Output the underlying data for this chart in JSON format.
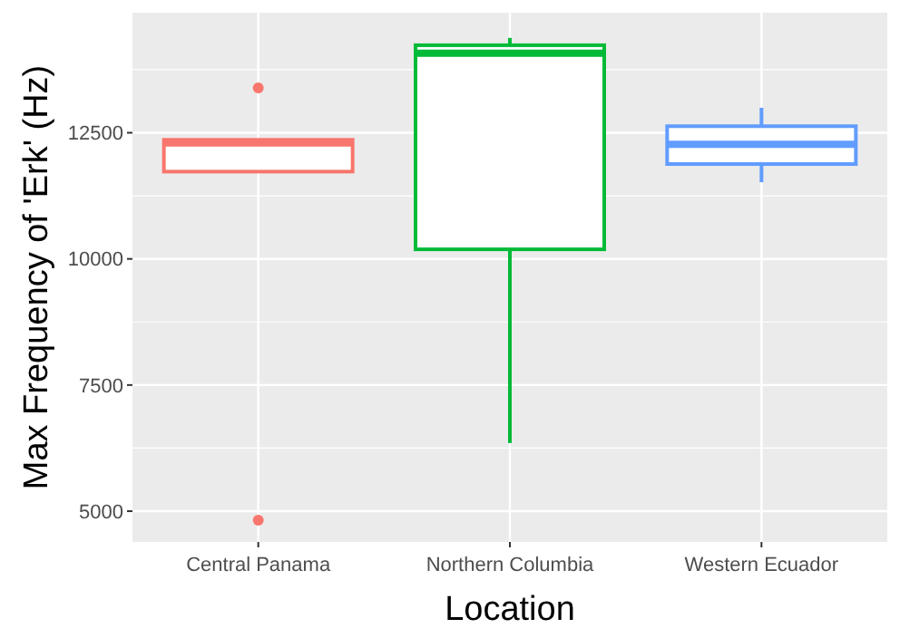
{
  "chart_data": {
    "type": "box",
    "xlabel": "Location",
    "ylabel": "Max Frequency of 'Erk' (Hz)",
    "categories": [
      "Central Panama",
      "Northern Columbia",
      "Western Ecuador"
    ],
    "colors": [
      "#f8766d",
      "#00ba38",
      "#619cff"
    ],
    "boxes": [
      {
        "low": 11730,
        "q1": 11730,
        "median": 12300,
        "q3": 12360,
        "high": 12360,
        "outliers": [
          13390,
          4820
        ]
      },
      {
        "low": 6350,
        "q1": 10190,
        "median": 14075,
        "q3": 14235,
        "high": 14380
      },
      {
        "low": 11520,
        "q1": 11880,
        "median": 12270,
        "q3": 12630,
        "high": 12995
      }
    ],
    "ylim": [
      4390,
      14880
    ],
    "yticks": [
      5000,
      7500,
      10000,
      12500
    ],
    "grid": true
  }
}
